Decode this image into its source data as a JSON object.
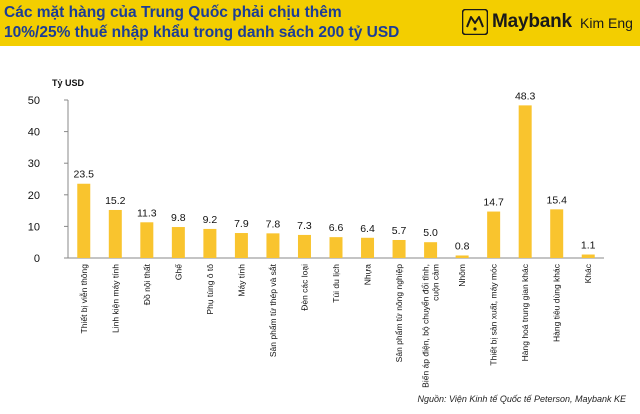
{
  "header": {
    "title_line1": "Các mặt hàng của Trung Quốc phải chịu thêm",
    "title_line2": "10%/25% thuế nhập khẩu trong danh sách 200 tỷ USD",
    "logo_name": "Maybank",
    "logo_sub": "Kim Eng",
    "logo_icon": "tiger-emblem-icon",
    "accent_color": "#f3ce00",
    "title_color": "#1c3d96"
  },
  "chart_data": {
    "type": "bar",
    "title": "",
    "ylabel": "Tỷ USD",
    "xlabel": "",
    "ylim": [
      0,
      50
    ],
    "yticks": [
      0,
      10,
      20,
      30,
      40,
      50
    ],
    "grid": false,
    "bar_color": "#f9c42e",
    "categories": [
      "Thiết bị viễn thông",
      "Linh kiện máy tính",
      "Đồ nội thất",
      "Ghế",
      "Phụ tùng ô tô",
      "Máy tính",
      "Sản phẩm từ thép và sắt",
      "Đèn các loại",
      "Túi du lịch",
      "Nhựa",
      "Sản phẩm từ nông nghiệp",
      "Biến áp điện, bộ chuyển đổi tĩnh, cuộn cảm",
      "Nhôm",
      "Thiết bị sản xuất, máy móc",
      "Hàng hoá trung gian khác",
      "Hàng tiêu dùng khác",
      "Khác"
    ],
    "values": [
      23.5,
      15.2,
      11.3,
      9.8,
      9.2,
      7.9,
      7.8,
      7.3,
      6.6,
      6.4,
      5.7,
      5.0,
      0.8,
      14.7,
      48.3,
      15.4,
      1.1
    ],
    "value_labels": [
      "23.5",
      "15.2",
      "11.3",
      "9.8",
      "9.2",
      "7.9",
      "7.8",
      "7.3",
      "6.6",
      "6.4",
      "5.7",
      "5.0",
      "0.8",
      "14.7",
      "48.3",
      "15.4",
      "1.1"
    ]
  },
  "source": "Nguồn: Viện Kinh tế Quốc tế Peterson, Maybank KE"
}
